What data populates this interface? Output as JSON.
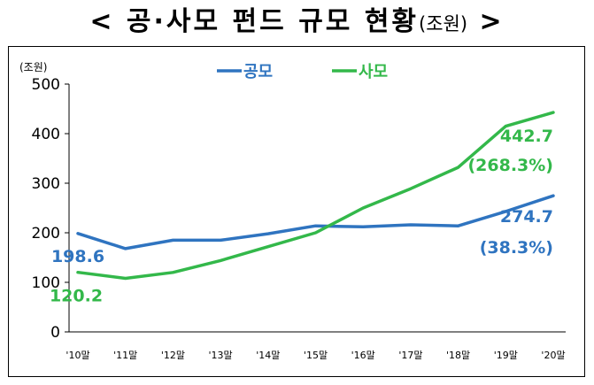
{
  "title": {
    "left_bracket": "<",
    "text": "공·사모 펀드 규모 현황",
    "unit": "(조원)",
    "right_bracket": ">"
  },
  "chart_data": {
    "type": "line",
    "y_unit_label": "(조원)",
    "categories": [
      "'10말",
      "'11말",
      "'12말",
      "'13말",
      "'14말",
      "'15말",
      "'16말",
      "'17말",
      "'18말",
      "'19말",
      "'20말"
    ],
    "ylim": [
      0,
      500
    ],
    "yticks": [
      0,
      100,
      200,
      300,
      400,
      500
    ],
    "grid": false,
    "legend_position": "top",
    "series": [
      {
        "name": "공모",
        "color": "#2f74c0",
        "values": [
          198.6,
          168,
          185,
          185,
          198,
          214,
          212,
          216,
          214,
          243,
          274.7
        ]
      },
      {
        "name": "사모",
        "color": "#33b84a",
        "values": [
          120.2,
          108,
          120,
          144,
          172,
          200,
          250,
          289,
          332,
          415,
          442.7
        ]
      }
    ],
    "annotations": [
      {
        "series": 0,
        "index": 0,
        "text": "198.6"
      },
      {
        "series": 1,
        "index": 0,
        "text": "120.2"
      },
      {
        "series": 1,
        "index": 10,
        "text": "442.7"
      },
      {
        "series": 1,
        "index": 10,
        "text": "(268.3%)"
      },
      {
        "series": 0,
        "index": 10,
        "text": "274.7"
      },
      {
        "series": 0,
        "index": 10,
        "text": "(38.3%)"
      }
    ]
  }
}
